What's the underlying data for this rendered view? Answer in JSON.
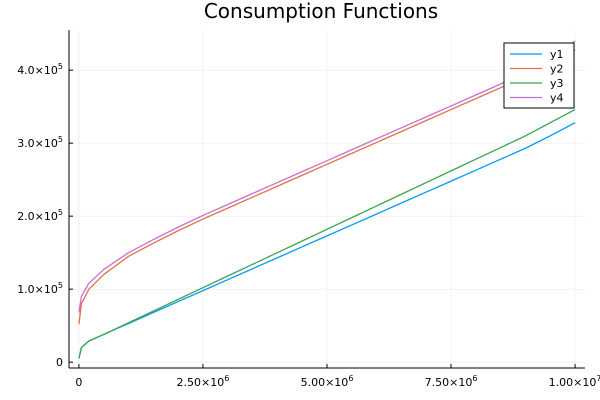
{
  "chart_data": {
    "type": "line",
    "title": "Consumption Functions",
    "xlabel": "",
    "ylabel": "",
    "xlim": [
      -200000,
      10200000
    ],
    "ylim": [
      -8000,
      455000
    ],
    "grid": true,
    "legend_position": "top-right",
    "x_ticks": [
      {
        "value": 0,
        "base": "0",
        "exp": ""
      },
      {
        "value": 2500000,
        "base": "2.50×10",
        "exp": "6"
      },
      {
        "value": 5000000,
        "base": "5.00×10",
        "exp": "6"
      },
      {
        "value": 7500000,
        "base": "7.50×10",
        "exp": "6"
      },
      {
        "value": 10000000,
        "base": "1.00×10",
        "exp": "7"
      }
    ],
    "y_ticks": [
      {
        "value": 0,
        "base": "0",
        "exp": ""
      },
      {
        "value": 100000,
        "base": "1.0×10",
        "exp": "5"
      },
      {
        "value": 200000,
        "base": "2.0×10",
        "exp": "5"
      },
      {
        "value": 300000,
        "base": "3.0×10",
        "exp": "5"
      },
      {
        "value": 400000,
        "base": "4.0×10",
        "exp": "5"
      }
    ],
    "x": [
      0,
      50000,
      200000,
      500000,
      1000000,
      1500000,
      2000000,
      2500000,
      3000000,
      3500000,
      4000000,
      4500000,
      5000000,
      5500000,
      6000000,
      6500000,
      7000000,
      7500000,
      8000000,
      8500000,
      9000000,
      9500000,
      10000000
    ],
    "series": [
      {
        "name": "y1",
        "color": "#009AFA",
        "values": [
          5000,
          20000,
          29000,
          38000,
          53000,
          68000,
          83000,
          98000,
          113000,
          128000,
          143000,
          158000,
          173000,
          188000,
          203000,
          218000,
          233000,
          248000,
          263000,
          278000,
          293000,
          310000,
          328000
        ]
      },
      {
        "name": "y2",
        "color": "#E36F47",
        "values": [
          52000,
          80000,
          100000,
          120000,
          145000,
          163000,
          180000,
          196000,
          211000,
          226000,
          241000,
          256000,
          271000,
          286000,
          301000,
          316000,
          331000,
          346000,
          361000,
          376000,
          391000,
          408000,
          428000
        ]
      },
      {
        "name": "y3",
        "color": "#3EA44E",
        "values": [
          5000,
          20000,
          29000,
          38000,
          54000,
          70000,
          86000,
          102000,
          118000,
          134000,
          150000,
          166000,
          182000,
          198000,
          214000,
          230000,
          246000,
          262000,
          278000,
          294000,
          310000,
          328000,
          346000
        ]
      },
      {
        "name": "y4",
        "color": "#C271D2",
        "values": [
          68000,
          90000,
          108000,
          127000,
          150000,
          168000,
          185000,
          201000,
          216000,
          231000,
          246000,
          261000,
          276000,
          291000,
          306000,
          321000,
          336000,
          351000,
          366000,
          381000,
          396000,
          413000,
          440000
        ]
      }
    ]
  }
}
